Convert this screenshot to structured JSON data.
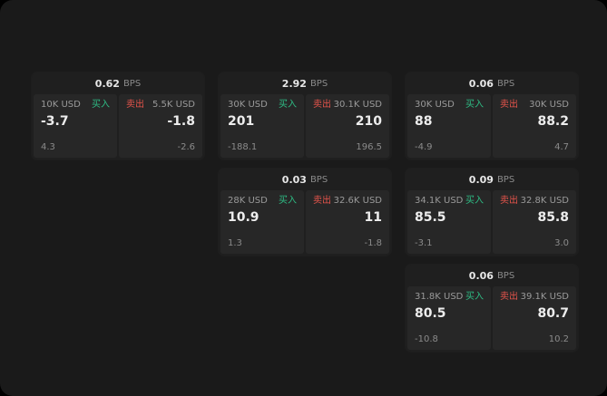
{
  "colors": {
    "buy": "#2ebd85",
    "sell": "#e5544b",
    "card_bg": "#1f1f1f",
    "panel_bg": "#272727",
    "app_bg": "#1a1a1a"
  },
  "cards": [
    {
      "bps": "0.62",
      "bps_unit": "BPS",
      "buy_size": "10K USD",
      "buy_label": "买入",
      "buy_price": "-3.7",
      "buy_sub": "4.3",
      "sell_label": "卖出",
      "sell_size": "5.5K USD",
      "sell_price": "-1.8",
      "sell_sub": "-2.6"
    },
    {
      "bps": "2.92",
      "bps_unit": "BPS",
      "buy_size": "30K USD",
      "buy_label": "买入",
      "buy_price": "201",
      "buy_sub": "-188.1",
      "sell_label": "卖出",
      "sell_size": "30.1K USD",
      "sell_price": "210",
      "sell_sub": "196.5"
    },
    {
      "bps": "0.06",
      "bps_unit": "BPS",
      "buy_size": "30K USD",
      "buy_label": "买入",
      "buy_price": "88",
      "buy_sub": "-4.9",
      "sell_label": "卖出",
      "sell_size": "30K USD",
      "sell_price": "88.2",
      "sell_sub": "4.7"
    },
    {
      "bps": "0.03",
      "bps_unit": "BPS",
      "buy_size": "28K USD",
      "buy_label": "买入",
      "buy_price": "10.9",
      "buy_sub": "1.3",
      "sell_label": "卖出",
      "sell_size": "32.6K USD",
      "sell_price": "11",
      "sell_sub": "-1.8"
    },
    {
      "bps": "0.09",
      "bps_unit": "BPS",
      "buy_size": "34.1K USD",
      "buy_label": "买入",
      "buy_price": "85.5",
      "buy_sub": "-3.1",
      "sell_label": "卖出",
      "sell_size": "32.8K USD",
      "sell_price": "85.8",
      "sell_sub": "3.0"
    },
    {
      "bps": "0.06",
      "bps_unit": "BPS",
      "buy_size": "31.8K USD",
      "buy_label": "买入",
      "buy_price": "80.5",
      "buy_sub": "-10.8",
      "sell_label": "卖出",
      "sell_size": "39.1K USD",
      "sell_price": "80.7",
      "sell_sub": "10.2"
    }
  ]
}
